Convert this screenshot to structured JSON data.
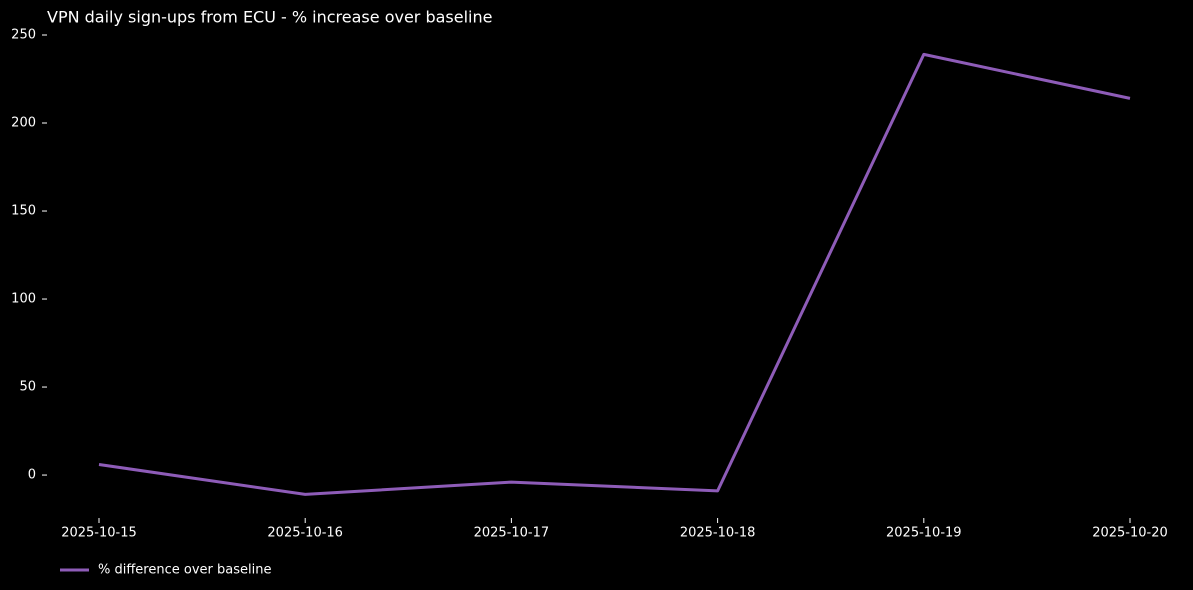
{
  "chart_data": {
    "type": "line",
    "title": "VPN daily sign-ups from ECU - % increase over baseline",
    "x": [
      "2025-10-15",
      "2025-10-16",
      "2025-10-17",
      "2025-10-18",
      "2025-10-19",
      "2025-10-20"
    ],
    "xticks": [
      "2025-10-15",
      "2025-10-16",
      "2025-10-17",
      "2025-10-18",
      "2025-10-19",
      "2025-10-20"
    ],
    "series": [
      {
        "name": "% difference over baseline",
        "color": "#8e5cb8",
        "values": [
          6,
          -11,
          -4,
          -9,
          239,
          214
        ]
      }
    ],
    "ylim": [
      -24.4,
      250
    ],
    "yticks": [
      0,
      50,
      100,
      150,
      200,
      250
    ],
    "grid": false,
    "legend": "lower left"
  }
}
